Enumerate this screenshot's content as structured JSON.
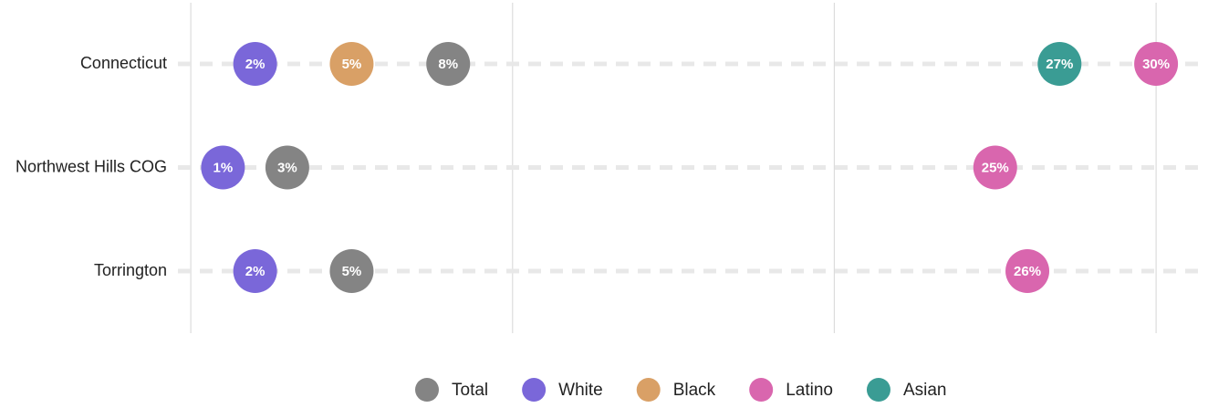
{
  "chart_data": {
    "type": "dot",
    "categories": [
      "Connecticut",
      "Northwest Hills COG",
      "Torrington"
    ],
    "series": [
      {
        "name": "Total",
        "color": "#848484",
        "values": [
          8,
          3,
          5
        ],
        "value_labels": [
          "8%",
          "3%",
          "5%"
        ]
      },
      {
        "name": "White",
        "color": "#7a67d9",
        "values": [
          2,
          1,
          2
        ],
        "value_labels": [
          "2%",
          "1%",
          "2%"
        ]
      },
      {
        "name": "Black",
        "color": "#d9a066",
        "values": [
          5,
          null,
          null
        ],
        "value_labels": [
          "5%",
          null,
          null
        ]
      },
      {
        "name": "Latino",
        "color": "#d966ae",
        "values": [
          30,
          25,
          26
        ],
        "value_labels": [
          "30%",
          "25%",
          "26%"
        ]
      },
      {
        "name": "Asian",
        "color": "#3a9c94",
        "values": [
          27,
          null,
          null
        ],
        "value_labels": [
          "27%",
          null,
          null
        ]
      }
    ],
    "xlim": [
      -0.4,
      31.5
    ],
    "xticks": [
      0,
      10,
      20,
      30
    ],
    "grid": true,
    "legend": "bottom"
  }
}
